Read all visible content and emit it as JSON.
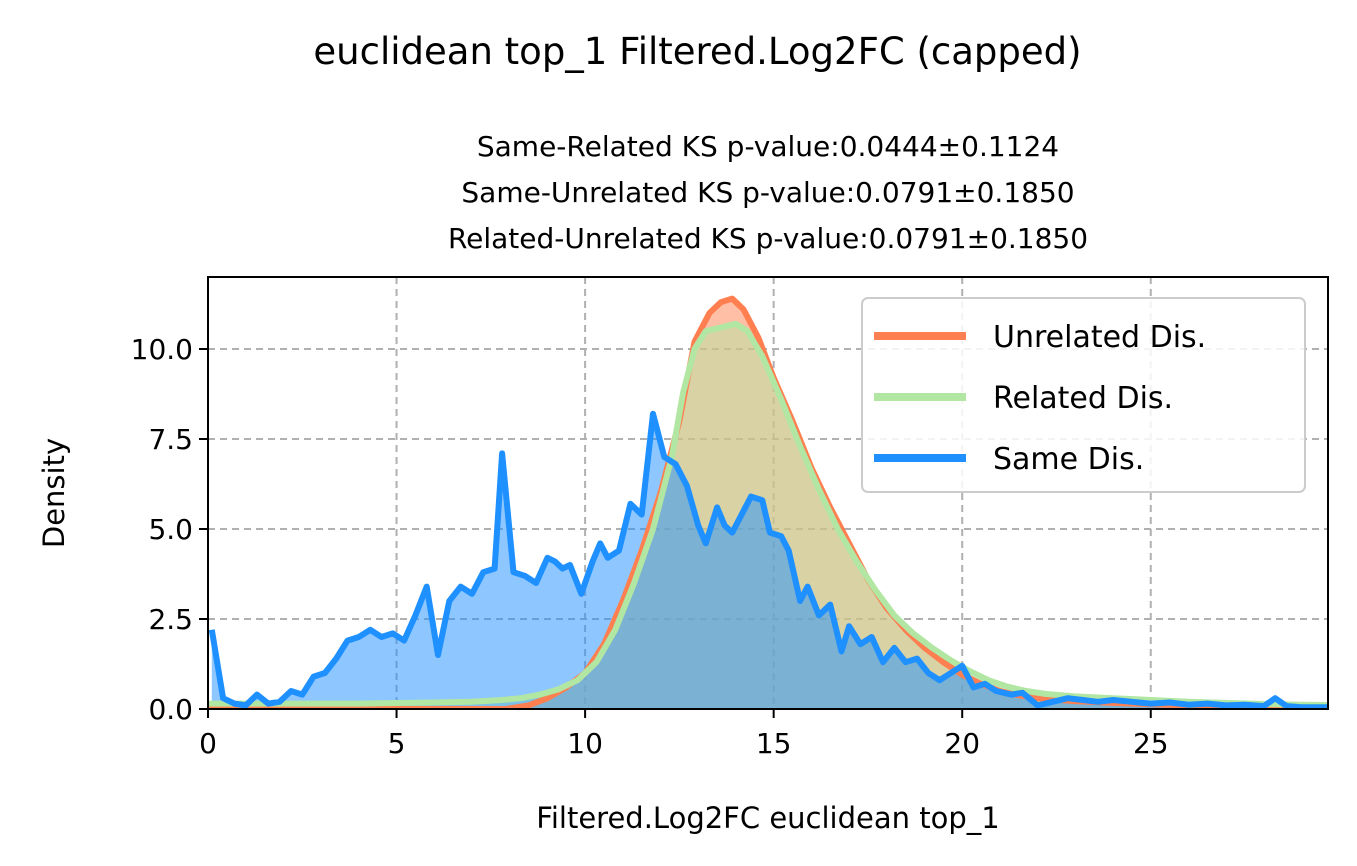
{
  "figure": {
    "suptitle": "euclidean top_1 Filtered.Log2FC (capped)",
    "subtitle_lines": [
      "Same-Related KS p-value:0.0444±0.1124",
      "Same-Unrelated KS p-value:0.0791±0.1850",
      "Related-Unrelated KS p-value:0.0791±0.1850"
    ]
  },
  "chart_data": {
    "type": "area",
    "xlabel": "Filtered.Log2FC euclidean top_1",
    "ylabel": "Density",
    "xlim": [
      0,
      29.7
    ],
    "ylim": [
      0,
      12
    ],
    "x_ticks": [
      0,
      5,
      10,
      15,
      20,
      25
    ],
    "y_ticks": [
      0.0,
      2.5,
      5.0,
      7.5,
      10.0
    ],
    "x_tick_labels": [
      "0",
      "5",
      "10",
      "15",
      "20",
      "25"
    ],
    "y_tick_labels": [
      "0.0",
      "2.5",
      "5.0",
      "7.5",
      "10.0"
    ],
    "grid": true,
    "legend_position": "top-right",
    "series": [
      {
        "name": "Unrelated Dis.",
        "line_color": "#ff7f50",
        "fill_color": "#ff7f50",
        "points": [
          [
            0,
            0
          ],
          [
            7.9,
            0
          ],
          [
            8.5,
            0.1
          ],
          [
            9.0,
            0.3
          ],
          [
            9.5,
            0.6
          ],
          [
            10.0,
            1.0
          ],
          [
            10.5,
            1.8
          ],
          [
            11.0,
            3.0
          ],
          [
            11.5,
            4.4
          ],
          [
            12.0,
            6.0
          ],
          [
            12.5,
            8.0
          ],
          [
            12.9,
            10.2
          ],
          [
            13.3,
            11.0
          ],
          [
            13.6,
            11.3
          ],
          [
            13.9,
            11.4
          ],
          [
            14.2,
            11.1
          ],
          [
            14.6,
            10.3
          ],
          [
            15.0,
            9.2
          ],
          [
            15.5,
            8.0
          ],
          [
            16.0,
            6.7
          ],
          [
            16.5,
            5.6
          ],
          [
            17.0,
            4.6
          ],
          [
            17.5,
            3.6
          ],
          [
            18.0,
            2.8
          ],
          [
            18.5,
            2.2
          ],
          [
            19.0,
            1.7
          ],
          [
            19.5,
            1.3
          ],
          [
            20.0,
            0.95
          ],
          [
            20.5,
            0.7
          ],
          [
            21.0,
            0.5
          ],
          [
            21.5,
            0.38
          ],
          [
            22.0,
            0.3
          ],
          [
            23.0,
            0.22
          ],
          [
            24.0,
            0.17
          ],
          [
            25.0,
            0.13
          ],
          [
            26.0,
            0.1
          ],
          [
            27.0,
            0.08
          ],
          [
            28.0,
            0.06
          ],
          [
            29.0,
            0.05
          ],
          [
            29.7,
            0.05
          ]
        ]
      },
      {
        "name": "Related Dis.",
        "line_color": "#b2e6a3",
        "fill_color": "#b2e6a3",
        "points": [
          [
            0,
            0.15
          ],
          [
            2,
            0.15
          ],
          [
            4,
            0.15
          ],
          [
            6,
            0.18
          ],
          [
            7.0,
            0.2
          ],
          [
            7.8,
            0.25
          ],
          [
            8.3,
            0.3
          ],
          [
            8.8,
            0.4
          ],
          [
            9.3,
            0.55
          ],
          [
            9.8,
            0.8
          ],
          [
            10.3,
            1.3
          ],
          [
            10.8,
            2.2
          ],
          [
            11.3,
            3.5
          ],
          [
            11.8,
            5.0
          ],
          [
            12.3,
            7.0
          ],
          [
            12.6,
            8.8
          ],
          [
            12.9,
            10.0
          ],
          [
            13.2,
            10.5
          ],
          [
            13.6,
            10.6
          ],
          [
            14.0,
            10.7
          ],
          [
            14.3,
            10.5
          ],
          [
            14.7,
            9.8
          ],
          [
            15.2,
            8.6
          ],
          [
            15.7,
            7.3
          ],
          [
            16.2,
            6.1
          ],
          [
            16.7,
            5.0
          ],
          [
            17.2,
            4.1
          ],
          [
            17.7,
            3.3
          ],
          [
            18.2,
            2.6
          ],
          [
            18.7,
            2.1
          ],
          [
            19.2,
            1.7
          ],
          [
            19.7,
            1.35
          ],
          [
            20.2,
            1.05
          ],
          [
            20.7,
            0.8
          ],
          [
            21.2,
            0.62
          ],
          [
            21.7,
            0.5
          ],
          [
            22.2,
            0.42
          ],
          [
            23.0,
            0.35
          ],
          [
            24.0,
            0.3
          ],
          [
            25.0,
            0.25
          ],
          [
            26.0,
            0.2
          ],
          [
            27.0,
            0.17
          ],
          [
            28.0,
            0.14
          ],
          [
            29.0,
            0.12
          ],
          [
            29.7,
            0.11
          ]
        ]
      },
      {
        "name": "Same Dis.",
        "line_color": "#1e90ff",
        "fill_color": "#1e90ff",
        "points": [
          [
            0.1,
            2.2
          ],
          [
            0.4,
            0.3
          ],
          [
            0.7,
            0.15
          ],
          [
            1.0,
            0.1
          ],
          [
            1.3,
            0.4
          ],
          [
            1.6,
            0.15
          ],
          [
            1.9,
            0.2
          ],
          [
            2.2,
            0.5
          ],
          [
            2.5,
            0.4
          ],
          [
            2.8,
            0.9
          ],
          [
            3.1,
            1.0
          ],
          [
            3.4,
            1.4
          ],
          [
            3.7,
            1.9
          ],
          [
            4.0,
            2.0
          ],
          [
            4.3,
            2.2
          ],
          [
            4.6,
            2.0
          ],
          [
            4.9,
            2.1
          ],
          [
            5.2,
            1.9
          ],
          [
            5.5,
            2.6
          ],
          [
            5.8,
            3.4
          ],
          [
            6.1,
            1.5
          ],
          [
            6.4,
            3.0
          ],
          [
            6.7,
            3.4
          ],
          [
            7.0,
            3.2
          ],
          [
            7.3,
            3.8
          ],
          [
            7.6,
            3.9
          ],
          [
            7.8,
            7.1
          ],
          [
            8.1,
            3.8
          ],
          [
            8.4,
            3.7
          ],
          [
            8.7,
            3.5
          ],
          [
            9.0,
            4.2
          ],
          [
            9.2,
            4.1
          ],
          [
            9.4,
            3.9
          ],
          [
            9.6,
            4.0
          ],
          [
            9.9,
            3.2
          ],
          [
            10.2,
            4.1
          ],
          [
            10.4,
            4.6
          ],
          [
            10.6,
            4.2
          ],
          [
            10.9,
            4.4
          ],
          [
            11.2,
            5.7
          ],
          [
            11.5,
            5.4
          ],
          [
            11.8,
            8.2
          ],
          [
            12.1,
            7.0
          ],
          [
            12.4,
            6.8
          ],
          [
            12.7,
            6.2
          ],
          [
            13.0,
            5.1
          ],
          [
            13.2,
            4.6
          ],
          [
            13.5,
            5.6
          ],
          [
            13.7,
            5.1
          ],
          [
            13.9,
            4.9
          ],
          [
            14.1,
            5.3
          ],
          [
            14.4,
            5.9
          ],
          [
            14.7,
            5.8
          ],
          [
            14.9,
            4.9
          ],
          [
            15.2,
            4.8
          ],
          [
            15.4,
            4.4
          ],
          [
            15.7,
            3.0
          ],
          [
            15.9,
            3.4
          ],
          [
            16.2,
            2.6
          ],
          [
            16.5,
            2.9
          ],
          [
            16.8,
            1.6
          ],
          [
            17.0,
            2.3
          ],
          [
            17.3,
            1.8
          ],
          [
            17.6,
            2.0
          ],
          [
            17.9,
            1.3
          ],
          [
            18.2,
            1.7
          ],
          [
            18.5,
            1.3
          ],
          [
            18.8,
            1.4
          ],
          [
            19.1,
            1.0
          ],
          [
            19.4,
            0.8
          ],
          [
            19.7,
            1.0
          ],
          [
            20.0,
            1.2
          ],
          [
            20.3,
            0.6
          ],
          [
            20.6,
            0.7
          ],
          [
            20.9,
            0.5
          ],
          [
            21.3,
            0.4
          ],
          [
            21.6,
            0.45
          ],
          [
            22.0,
            0.1
          ],
          [
            22.4,
            0.2
          ],
          [
            22.8,
            0.3
          ],
          [
            23.2,
            0.25
          ],
          [
            23.6,
            0.2
          ],
          [
            24.0,
            0.25
          ],
          [
            24.5,
            0.2
          ],
          [
            25.0,
            0.15
          ],
          [
            25.5,
            0.18
          ],
          [
            26.0,
            0.12
          ],
          [
            26.5,
            0.15
          ],
          [
            27.0,
            0.1
          ],
          [
            27.5,
            0.12
          ],
          [
            28.0,
            0.08
          ],
          [
            28.3,
            0.3
          ],
          [
            28.6,
            0.08
          ],
          [
            29.0,
            0.05
          ],
          [
            29.7,
            0.05
          ]
        ]
      }
    ]
  }
}
